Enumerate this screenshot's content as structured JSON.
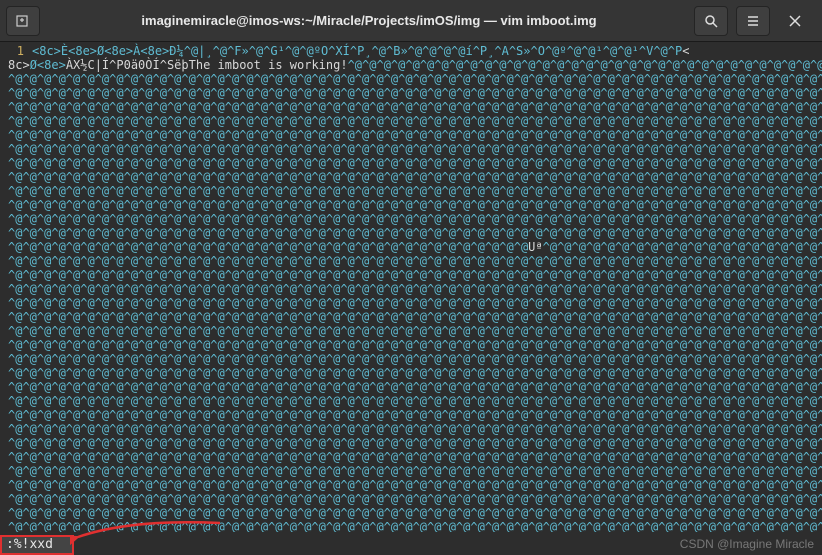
{
  "window": {
    "title": "imaginemiracle@imos-ws:~/Miracle/Projects/imOS/img — vim imboot.img",
    "newTabIcon": "new-tab",
    "searchIcon": "search",
    "menuIcon": "menu",
    "closeIcon": "close"
  },
  "editor": {
    "lineNumber": "1",
    "firstLineHead": "<8c>È<8e>Ø<8e>À<8e>Ð¼^@|¸^@^F»^@^G¹^@^@ºO^XÍ^P¸^@^B»^@^@^@^@í^P¸^A^S»^O^@º^@^@¹^@^@¹^V^@^P",
    "secondLineHead": "<8c>Ø<8e>ÀX½C|Í^P0ä0ÒÍ^SëþThe imboot is working!",
    "midBreak": "^@^@^@^@^@^@^@^@^@^@^@^@Uª",
    "filler": "^@",
    "rowCount": 35,
    "colors": {
      "bg": "#2d2d2d",
      "code": "#5fbcd3",
      "plain": "#d8d8d8",
      "gutter": "#d0b060",
      "titlebar": "#353535",
      "highlightBox": "#e03030"
    }
  },
  "command": ":%!xxd",
  "watermark": "CSDN @Imagine Miracle"
}
